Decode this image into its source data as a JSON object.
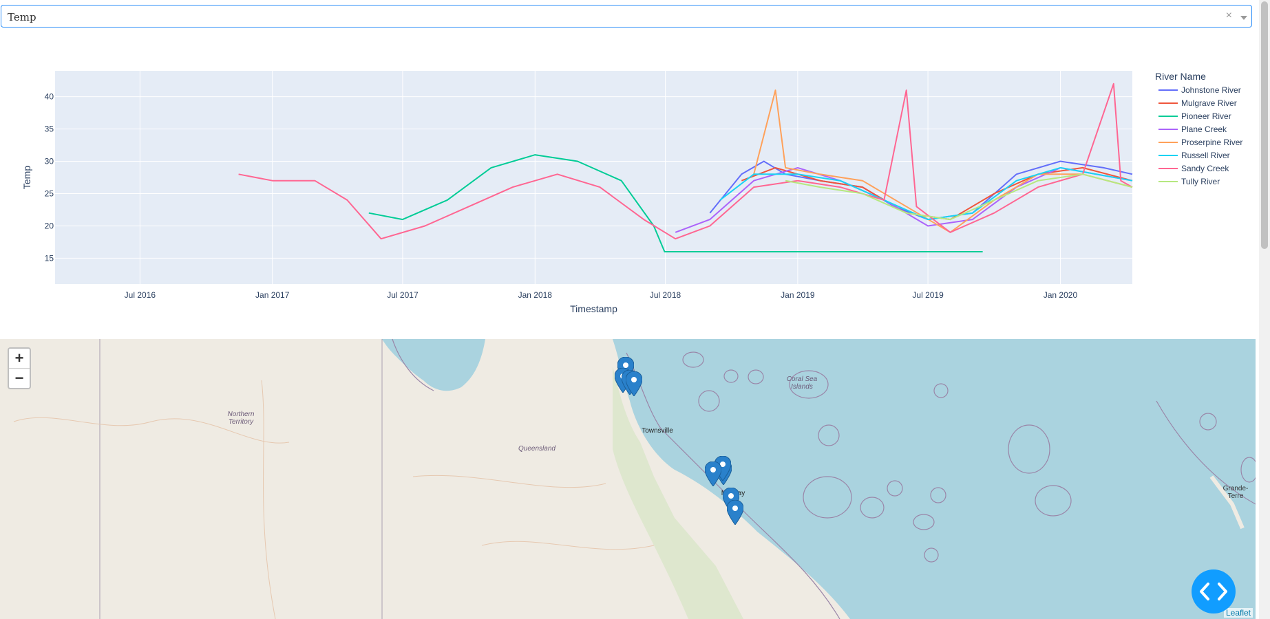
{
  "dropdown": {
    "value": "Temp",
    "clear_glyph": "×"
  },
  "chart_data": {
    "type": "line",
    "xlabel": "Timestamp",
    "ylabel": "Temp",
    "legend_title": "River Name",
    "x_ticks": [
      "Jul 2016",
      "Jan 2017",
      "Jul 2017",
      "Jan 2018",
      "Jul 2018",
      "Jan 2019",
      "Jul 2019",
      "Jan 2020"
    ],
    "y_ticks": [
      15,
      20,
      25,
      30,
      35,
      40
    ],
    "xlim": [
      "2016-03-05",
      "2020-04-10"
    ],
    "ylim": [
      11,
      44
    ],
    "legend_position": "right",
    "series": [
      {
        "name": "Johnstone River",
        "color": "#636efa",
        "points": [
          [
            "2018-09-01",
            22
          ],
          [
            "2018-10-15",
            28
          ],
          [
            "2018-11-15",
            30
          ],
          [
            "2018-12-15",
            28
          ],
          [
            "2019-02-01",
            27
          ],
          [
            "2019-04-01",
            26
          ],
          [
            "2019-05-15",
            23
          ],
          [
            "2019-07-01",
            21
          ],
          [
            "2019-09-01",
            22
          ],
          [
            "2019-11-01",
            28
          ],
          [
            "2020-01-01",
            30
          ],
          [
            "2020-03-01",
            29
          ],
          [
            "2020-04-10",
            28
          ]
        ]
      },
      {
        "name": "Mulgrave River",
        "color": "#ef553b",
        "points": [
          [
            "2018-10-15",
            27
          ],
          [
            "2018-12-01",
            29
          ],
          [
            "2019-02-01",
            27
          ],
          [
            "2019-04-01",
            26
          ],
          [
            "2019-06-01",
            22
          ],
          [
            "2019-08-01",
            21
          ],
          [
            "2019-10-01",
            25
          ],
          [
            "2019-12-01",
            28
          ],
          [
            "2020-02-01",
            29
          ],
          [
            "2020-04-10",
            27
          ]
        ]
      },
      {
        "name": "Pioneer River",
        "color": "#00cc96",
        "points": [
          [
            "2017-05-15",
            22
          ],
          [
            "2017-07-01",
            21
          ],
          [
            "2017-09-01",
            24
          ],
          [
            "2017-11-01",
            29
          ],
          [
            "2018-01-01",
            31
          ],
          [
            "2018-03-01",
            30
          ],
          [
            "2018-05-01",
            27
          ],
          [
            "2018-06-15",
            20
          ],
          [
            "2018-06-30",
            16
          ],
          [
            "2018-11-15",
            16
          ],
          [
            "2018-12-15",
            16
          ],
          [
            "2019-09-15",
            16
          ]
        ]
      },
      {
        "name": "Plane Creek",
        "color": "#ab63fa",
        "points": [
          [
            "2018-07-15",
            19
          ],
          [
            "2018-09-01",
            21
          ],
          [
            "2018-11-01",
            27
          ],
          [
            "2019-01-01",
            29
          ],
          [
            "2019-03-01",
            27
          ],
          [
            "2019-05-01",
            24
          ],
          [
            "2019-07-01",
            20
          ],
          [
            "2019-09-01",
            21
          ],
          [
            "2019-11-01",
            26
          ],
          [
            "2020-01-01",
            29
          ],
          [
            "2020-04-10",
            27
          ]
        ]
      },
      {
        "name": "Proserpine River",
        "color": "#ffa15a",
        "points": [
          [
            "2018-11-01",
            28
          ],
          [
            "2018-12-01",
            41
          ],
          [
            "2018-12-15",
            29
          ],
          [
            "2019-02-01",
            28
          ],
          [
            "2019-04-01",
            27
          ],
          [
            "2019-06-01",
            23
          ],
          [
            "2019-08-01",
            19
          ],
          [
            "2019-10-01",
            24
          ],
          [
            "2019-12-01",
            28
          ],
          [
            "2020-02-01",
            28
          ],
          [
            "2020-04-10",
            26
          ]
        ]
      },
      {
        "name": "Russell River",
        "color": "#19d3f3",
        "points": [
          [
            "2018-09-15",
            24
          ],
          [
            "2018-11-01",
            28
          ],
          [
            "2019-01-01",
            28
          ],
          [
            "2019-03-01",
            27
          ],
          [
            "2019-05-01",
            24
          ],
          [
            "2019-07-01",
            21
          ],
          [
            "2019-09-01",
            22
          ],
          [
            "2019-11-01",
            27
          ],
          [
            "2020-01-01",
            29
          ],
          [
            "2020-04-10",
            27
          ]
        ]
      },
      {
        "name": "Sandy Creek",
        "color": "#ff6692",
        "points": [
          [
            "2016-11-15",
            28
          ],
          [
            "2017-01-01",
            27
          ],
          [
            "2017-03-01",
            27
          ],
          [
            "2017-04-15",
            24
          ],
          [
            "2017-06-01",
            18
          ],
          [
            "2017-08-01",
            20
          ],
          [
            "2017-10-01",
            23
          ],
          [
            "2017-12-01",
            26
          ],
          [
            "2018-02-01",
            28
          ],
          [
            "2018-04-01",
            26
          ],
          [
            "2018-06-01",
            21
          ],
          [
            "2018-07-15",
            18
          ],
          [
            "2018-09-01",
            20
          ],
          [
            "2018-11-01",
            26
          ],
          [
            "2019-01-01",
            27
          ],
          [
            "2019-03-01",
            26
          ],
          [
            "2019-05-01",
            24
          ],
          [
            "2019-06-01",
            41
          ],
          [
            "2019-06-15",
            23
          ],
          [
            "2019-08-01",
            19
          ],
          [
            "2019-10-01",
            22
          ],
          [
            "2019-12-01",
            26
          ],
          [
            "2020-02-01",
            28
          ],
          [
            "2020-03-15",
            42
          ],
          [
            "2020-03-25",
            27
          ],
          [
            "2020-04-10",
            26
          ]
        ]
      },
      {
        "name": "Tully River",
        "color": "#b6e880",
        "points": [
          [
            "2018-12-15",
            27
          ],
          [
            "2019-02-01",
            26
          ],
          [
            "2019-04-01",
            25
          ],
          [
            "2019-06-01",
            22
          ],
          [
            "2019-08-01",
            21
          ],
          [
            "2019-10-01",
            24
          ],
          [
            "2019-12-01",
            27
          ],
          [
            "2020-02-01",
            28
          ],
          [
            "2020-04-10",
            26
          ]
        ]
      }
    ]
  },
  "map": {
    "zoom_in": "+",
    "zoom_out": "−",
    "attribution": "Leaflet",
    "place_labels": [
      "Northern Territory",
      "Queensland",
      "Coral Sea Islands",
      "Townsville",
      "Mackay",
      "Grande-Terre"
    ],
    "marker_count": 9
  }
}
